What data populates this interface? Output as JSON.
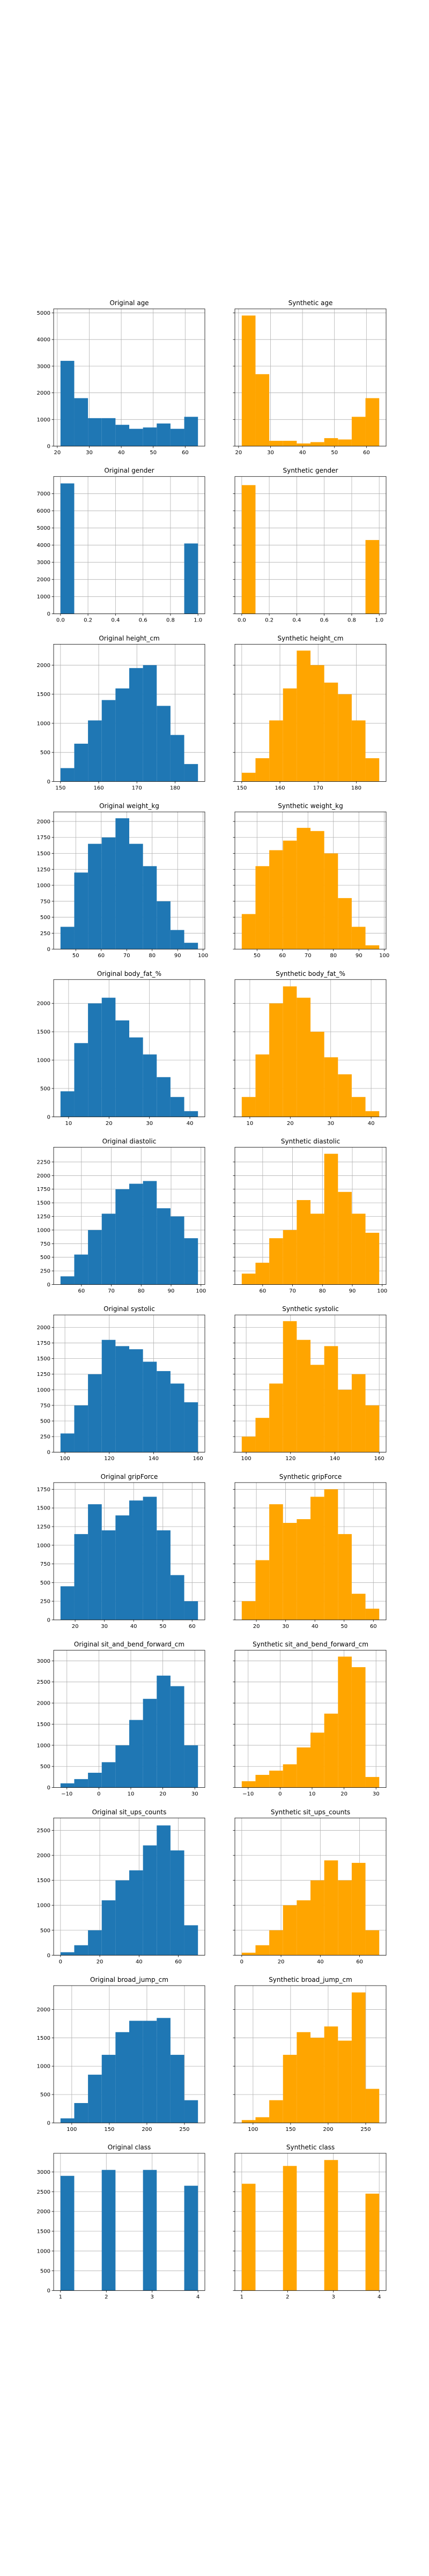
{
  "chart_data": [
    {
      "type": "histogram",
      "title": "Original age",
      "color": "#1f77b4",
      "grid": true,
      "bins": [
        21,
        25.3,
        29.6,
        33.9,
        38.2,
        42.5,
        46.8,
        51.1,
        55.4,
        59.7,
        64
      ],
      "values": [
        3200,
        1800,
        1050,
        1050,
        800,
        650,
        700,
        850,
        650,
        1100
      ],
      "xlim": [
        18.85,
        66.15
      ],
      "xticks": [
        20,
        30,
        40,
        50,
        60
      ],
      "ylim": [
        0,
        5150
      ],
      "yticks": [
        0,
        1000,
        2000,
        3000,
        4000,
        5000
      ]
    },
    {
      "type": "histogram",
      "title": "Synthetic age",
      "color": "#ffa500",
      "grid": true,
      "ytick_labels": false,
      "bins": [
        21,
        25.3,
        29.6,
        33.9,
        38.2,
        42.5,
        46.8,
        51.1,
        55.4,
        59.7,
        64
      ],
      "values": [
        4900,
        2700,
        200,
        200,
        100,
        150,
        300,
        250,
        1100,
        1800
      ],
      "xlim": [
        18.85,
        66.15
      ],
      "xticks": [
        20,
        30,
        40,
        50,
        60
      ],
      "ylim": [
        0,
        5150
      ],
      "yticks": [
        0,
        1000,
        2000,
        3000,
        4000,
        5000
      ]
    },
    {
      "type": "histogram",
      "title": "Original gender",
      "color": "#1f77b4",
      "grid": true,
      "bins": [
        0,
        0.1,
        0.2,
        0.3,
        0.4,
        0.5,
        0.6,
        0.7,
        0.8,
        0.9,
        1
      ],
      "values": [
        7600,
        0,
        0,
        0,
        0,
        0,
        0,
        0,
        0,
        4100
      ],
      "xlim": [
        -0.05,
        1.05
      ],
      "xticks": [
        {
          "value": 0,
          "label": "0.0"
        },
        0.2,
        0.4,
        0.6,
        0.8,
        {
          "value": 1,
          "label": "1.0"
        }
      ],
      "ylim": [
        0,
        8000
      ],
      "yticks": [
        0,
        1000,
        2000,
        3000,
        4000,
        5000,
        6000,
        7000
      ]
    },
    {
      "type": "histogram",
      "title": "Synthetic gender",
      "color": "#ffa500",
      "grid": true,
      "ytick_labels": false,
      "bins": [
        0,
        0.1,
        0.2,
        0.3,
        0.4,
        0.5,
        0.6,
        0.7,
        0.8,
        0.9,
        1
      ],
      "values": [
        7500,
        0,
        0,
        0,
        0,
        0,
        0,
        0,
        0,
        4300
      ],
      "xlim": [
        -0.05,
        1.05
      ],
      "xticks": [
        {
          "value": 0,
          "label": "0.0"
        },
        0.2,
        0.4,
        0.6,
        0.8,
        {
          "value": 1,
          "label": "1.0"
        }
      ],
      "ylim": [
        0,
        8000
      ],
      "yticks": [
        0,
        1000,
        2000,
        3000,
        4000,
        5000,
        6000,
        7000
      ]
    },
    {
      "type": "histogram",
      "title": "Original height_cm",
      "color": "#1f77b4",
      "grid": true,
      "bins": [
        150,
        153.6,
        157.2,
        160.8,
        164.4,
        168,
        171.6,
        175.2,
        178.8,
        182.4,
        186
      ],
      "values": [
        230,
        650,
        1050,
        1400,
        1600,
        1950,
        2000,
        1300,
        800,
        300
      ],
      "xlim": [
        148.2,
        187.8
      ],
      "xticks": [
        150,
        160,
        170,
        180
      ],
      "ylim": [
        0,
        2360
      ],
      "yticks": [
        0,
        500,
        1000,
        1500,
        2000
      ]
    },
    {
      "type": "histogram",
      "title": "Synthetic height_cm",
      "color": "#ffa500",
      "grid": true,
      "ytick_labels": false,
      "bins": [
        150,
        153.6,
        157.2,
        160.8,
        164.4,
        168,
        171.6,
        175.2,
        178.8,
        182.4,
        186
      ],
      "values": [
        150,
        400,
        1050,
        1600,
        2250,
        2000,
        1700,
        1500,
        1050,
        400
      ],
      "xlim": [
        148.2,
        187.8
      ],
      "xticks": [
        150,
        160,
        170,
        180
      ],
      "ylim": [
        0,
        2360
      ],
      "yticks": [
        0,
        500,
        1000,
        1500,
        2000
      ]
    },
    {
      "type": "histogram",
      "title": "Original weight_kg",
      "color": "#1f77b4",
      "grid": true,
      "bins": [
        44,
        49.4,
        54.8,
        60.2,
        65.6,
        71,
        76.4,
        81.8,
        87.2,
        92.6,
        98
      ],
      "values": [
        350,
        1200,
        1650,
        1750,
        2050,
        1650,
        1300,
        750,
        300,
        100
      ],
      "xlim": [
        41.3,
        100.7
      ],
      "xticks": [
        50,
        60,
        70,
        80,
        90,
        100
      ],
      "ylim": [
        0,
        2150
      ],
      "yticks": [
        0,
        250,
        500,
        750,
        1000,
        1250,
        1500,
        1750,
        2000
      ]
    },
    {
      "type": "histogram",
      "title": "Synthetic weight_kg",
      "color": "#ffa500",
      "grid": true,
      "ytick_labels": false,
      "bins": [
        44,
        49.4,
        54.8,
        60.2,
        65.6,
        71,
        76.4,
        81.8,
        87.2,
        92.6,
        98
      ],
      "values": [
        550,
        1300,
        1550,
        1700,
        1900,
        1850,
        1500,
        800,
        350,
        60
      ],
      "xlim": [
        41.3,
        100.7
      ],
      "xticks": [
        50,
        60,
        70,
        80,
        90,
        100
      ],
      "ylim": [
        0,
        2150
      ],
      "yticks": [
        0,
        250,
        500,
        750,
        1000,
        1250,
        1500,
        1750,
        2000
      ]
    },
    {
      "type": "histogram",
      "title": "Original body_fat_%",
      "color": "#1f77b4",
      "grid": true,
      "bins": [
        8,
        11.4,
        14.8,
        18.2,
        21.6,
        25,
        28.4,
        31.8,
        35.2,
        38.6,
        42
      ],
      "values": [
        450,
        1300,
        2000,
        2100,
        1700,
        1400,
        1100,
        700,
        350,
        100
      ],
      "xlim": [
        6.3,
        43.7
      ],
      "xticks": [
        10,
        20,
        30,
        40
      ],
      "ylim": [
        0,
        2420
      ],
      "yticks": [
        0,
        500,
        1000,
        1500,
        2000
      ]
    },
    {
      "type": "histogram",
      "title": "Synthetic body_fat_%",
      "color": "#ffa500",
      "grid": true,
      "ytick_labels": false,
      "bins": [
        8,
        11.4,
        14.8,
        18.2,
        21.6,
        25,
        28.4,
        31.8,
        35.2,
        38.6,
        42
      ],
      "values": [
        350,
        1100,
        2000,
        2300,
        2100,
        1500,
        1050,
        750,
        350,
        100
      ],
      "xlim": [
        6.3,
        43.7
      ],
      "xticks": [
        10,
        20,
        30,
        40
      ],
      "ylim": [
        0,
        2420
      ],
      "yticks": [
        0,
        500,
        1000,
        1500,
        2000
      ]
    },
    {
      "type": "histogram",
      "title": "Original diastolic",
      "color": "#1f77b4",
      "grid": true,
      "bins": [
        53,
        57.6,
        62.2,
        66.8,
        71.4,
        76,
        80.6,
        85.2,
        89.8,
        94.4,
        99
      ],
      "values": [
        150,
        550,
        1000,
        1300,
        1750,
        1850,
        1900,
        1400,
        1250,
        850
      ],
      "xlim": [
        50.7,
        101.3
      ],
      "xticks": [
        60,
        70,
        80,
        90,
        100
      ],
      "ylim": [
        0,
        2520
      ],
      "yticks": [
        0,
        250,
        500,
        750,
        1000,
        1250,
        1500,
        1750,
        2000,
        2250
      ]
    },
    {
      "type": "histogram",
      "title": "Synthetic diastolic",
      "color": "#ffa500",
      "grid": true,
      "ytick_labels": false,
      "bins": [
        53,
        57.6,
        62.2,
        66.8,
        71.4,
        76,
        80.6,
        85.2,
        89.8,
        94.4,
        99
      ],
      "values": [
        200,
        400,
        850,
        1000,
        1550,
        1300,
        2400,
        1700,
        1300,
        950
      ],
      "xlim": [
        50.7,
        101.3
      ],
      "xticks": [
        60,
        70,
        80,
        90,
        100
      ],
      "ylim": [
        0,
        2520
      ],
      "yticks": [
        0,
        250,
        500,
        750,
        1000,
        1250,
        1500,
        1750,
        2000,
        2250
      ]
    },
    {
      "type": "histogram",
      "title": "Original systolic",
      "color": "#1f77b4",
      "grid": true,
      "bins": [
        98,
        104.2,
        110.4,
        116.6,
        122.8,
        129,
        135.2,
        141.4,
        147.6,
        153.8,
        160
      ],
      "values": [
        300,
        750,
        1250,
        1800,
        1700,
        1650,
        1450,
        1300,
        1100,
        800
      ],
      "xlim": [
        94.9,
        163.1
      ],
      "xticks": [
        100,
        120,
        140,
        160
      ],
      "ylim": [
        0,
        2200
      ],
      "yticks": [
        0,
        250,
        500,
        750,
        1000,
        1250,
        1500,
        1750,
        2000
      ]
    },
    {
      "type": "histogram",
      "title": "Synthetic systolic",
      "color": "#ffa500",
      "grid": true,
      "ytick_labels": false,
      "bins": [
        98,
        104.2,
        110.4,
        116.6,
        122.8,
        129,
        135.2,
        141.4,
        147.6,
        153.8,
        160
      ],
      "values": [
        250,
        550,
        1100,
        2100,
        1800,
        1400,
        1700,
        1000,
        1250,
        750
      ],
      "xlim": [
        94.9,
        163.1
      ],
      "xticks": [
        100,
        120,
        140,
        160
      ],
      "ylim": [
        0,
        2200
      ],
      "yticks": [
        0,
        250,
        500,
        750,
        1000,
        1250,
        1500,
        1750,
        2000
      ]
    },
    {
      "type": "histogram",
      "title": "Original gripForce",
      "color": "#1f77b4",
      "grid": true,
      "bins": [
        15,
        19.7,
        24.4,
        29.1,
        33.8,
        38.5,
        43.2,
        47.9,
        52.6,
        57.3,
        62
      ],
      "values": [
        450,
        1150,
        1550,
        1200,
        1400,
        1600,
        1650,
        1200,
        600,
        250
      ],
      "xlim": [
        12.65,
        64.35
      ],
      "xticks": [
        20,
        30,
        40,
        50,
        60
      ],
      "ylim": [
        0,
        1840
      ],
      "yticks": [
        0,
        250,
        500,
        750,
        1000,
        1250,
        1500,
        1750
      ]
    },
    {
      "type": "histogram",
      "title": "Synthetic gripForce",
      "color": "#ffa500",
      "grid": true,
      "ytick_labels": false,
      "bins": [
        15,
        19.7,
        24.4,
        29.1,
        33.8,
        38.5,
        43.2,
        47.9,
        52.6,
        57.3,
        62
      ],
      "values": [
        250,
        800,
        1550,
        1300,
        1350,
        1650,
        1750,
        1150,
        350,
        150
      ],
      "xlim": [
        12.65,
        64.35
      ],
      "xticks": [
        20,
        30,
        40,
        50,
        60
      ],
      "ylim": [
        0,
        1840
      ],
      "yticks": [
        0,
        250,
        500,
        750,
        1000,
        1250,
        1500,
        1750
      ]
    },
    {
      "type": "histogram",
      "title": "Original sit_and_bend_forward_cm",
      "color": "#1f77b4",
      "grid": true,
      "bins": [
        -12,
        -7.7,
        -3.4,
        0.9,
        5.2,
        9.5,
        13.8,
        18.1,
        22.4,
        26.7,
        31
      ],
      "values": [
        100,
        200,
        350,
        600,
        1000,
        1600,
        2100,
        2650,
        2400,
        1000
      ],
      "xlim": [
        -14.15,
        33.15
      ],
      "xticks": [
        {
          "value": -10,
          "label": "−10"
        },
        0,
        10,
        20,
        30
      ],
      "ylim": [
        0,
        3250
      ],
      "yticks": [
        0,
        500,
        1000,
        1500,
        2000,
        2500,
        3000
      ]
    },
    {
      "type": "histogram",
      "title": "Synthetic sit_and_bend_forward_cm",
      "color": "#ffa500",
      "grid": true,
      "ytick_labels": false,
      "bins": [
        -12,
        -7.7,
        -3.4,
        0.9,
        5.2,
        9.5,
        13.8,
        18.1,
        22.4,
        26.7,
        31
      ],
      "values": [
        150,
        300,
        400,
        550,
        950,
        1300,
        1750,
        3100,
        2850,
        250
      ],
      "xlim": [
        -14.15,
        33.15
      ],
      "xticks": [
        {
          "value": -10,
          "label": "−10"
        },
        0,
        10,
        20,
        30
      ],
      "ylim": [
        0,
        3250
      ],
      "yticks": [
        0,
        500,
        1000,
        1500,
        2000,
        2500,
        3000
      ]
    },
    {
      "type": "histogram",
      "title": "Original sit_ups_counts",
      "color": "#1f77b4",
      "grid": true,
      "bins": [
        0,
        7,
        14,
        21,
        28,
        35,
        42,
        49,
        56,
        63,
        70
      ],
      "values": [
        60,
        200,
        500,
        1100,
        1500,
        1700,
        2200,
        2600,
        2100,
        600
      ],
      "xlim": [
        -3.5,
        73.5
      ],
      "xticks": [
        0,
        20,
        40,
        60
      ],
      "ylim": [
        0,
        2750
      ],
      "yticks": [
        0,
        500,
        1000,
        1500,
        2000,
        2500
      ]
    },
    {
      "type": "histogram",
      "title": "Synthetic sit_ups_counts",
      "color": "#ffa500",
      "grid": true,
      "ytick_labels": false,
      "bins": [
        0,
        7,
        14,
        21,
        28,
        35,
        42,
        49,
        56,
        63,
        70
      ],
      "values": [
        50,
        200,
        500,
        1000,
        1100,
        1500,
        1900,
        1500,
        1850,
        500
      ],
      "xlim": [
        -3.5,
        73.5
      ],
      "xticks": [
        0,
        20,
        40,
        60
      ],
      "ylim": [
        0,
        2750
      ],
      "yticks": [
        0,
        500,
        1000,
        1500,
        2000,
        2500
      ]
    },
    {
      "type": "histogram",
      "title": "Original broad_jump_cm",
      "color": "#1f77b4",
      "grid": true,
      "bins": [
        85,
        103.3,
        121.6,
        139.9,
        158.2,
        176.5,
        194.8,
        213.1,
        231.4,
        249.7,
        268
      ],
      "values": [
        80,
        350,
        850,
        1200,
        1600,
        1800,
        1800,
        1850,
        1200,
        400
      ],
      "xlim": [
        75.85,
        277.15
      ],
      "xticks": [
        100,
        150,
        200,
        250
      ],
      "ylim": [
        0,
        2420
      ],
      "yticks": [
        0,
        500,
        1000,
        1500,
        2000
      ]
    },
    {
      "type": "histogram",
      "title": "Synthetic broad_jump_cm",
      "color": "#ffa500",
      "grid": true,
      "ytick_labels": false,
      "bins": [
        85,
        103.3,
        121.6,
        139.9,
        158.2,
        176.5,
        194.8,
        213.1,
        231.4,
        249.7,
        268
      ],
      "values": [
        50,
        100,
        400,
        1200,
        1600,
        1500,
        1700,
        1450,
        2300,
        600
      ],
      "xlim": [
        75.85,
        277.15
      ],
      "xticks": [
        100,
        150,
        200,
        250
      ],
      "ylim": [
        0,
        2420
      ],
      "yticks": [
        0,
        500,
        1000,
        1500,
        2000
      ]
    },
    {
      "type": "histogram",
      "title": "Original class",
      "color": "#1f77b4",
      "grid": true,
      "bins": [
        1,
        1.3,
        1.6,
        1.9,
        2.2,
        2.5,
        2.8,
        3.1,
        3.4,
        3.7,
        4
      ],
      "values": [
        2900,
        0,
        0,
        3050,
        0,
        0,
        3050,
        0,
        0,
        2650
      ],
      "xlim": [
        0.85,
        4.15
      ],
      "xticks": [
        1,
        2,
        3,
        4
      ],
      "ylim": [
        0,
        3470
      ],
      "yticks": [
        0,
        500,
        1000,
        1500,
        2000,
        2500,
        3000
      ]
    },
    {
      "type": "histogram",
      "title": "Synthetic class",
      "color": "#ffa500",
      "grid": true,
      "ytick_labels": false,
      "bins": [
        1,
        1.3,
        1.6,
        1.9,
        2.2,
        2.5,
        2.8,
        3.1,
        3.4,
        3.7,
        4
      ],
      "values": [
        2700,
        0,
        0,
        3150,
        0,
        0,
        3300,
        0,
        0,
        2450
      ],
      "xlim": [
        0.85,
        4.15
      ],
      "xticks": [
        1,
        2,
        3,
        4
      ],
      "ylim": [
        0,
        3470
      ],
      "yticks": [
        0,
        500,
        1000,
        1500,
        2000,
        2500,
        3000
      ]
    }
  ]
}
